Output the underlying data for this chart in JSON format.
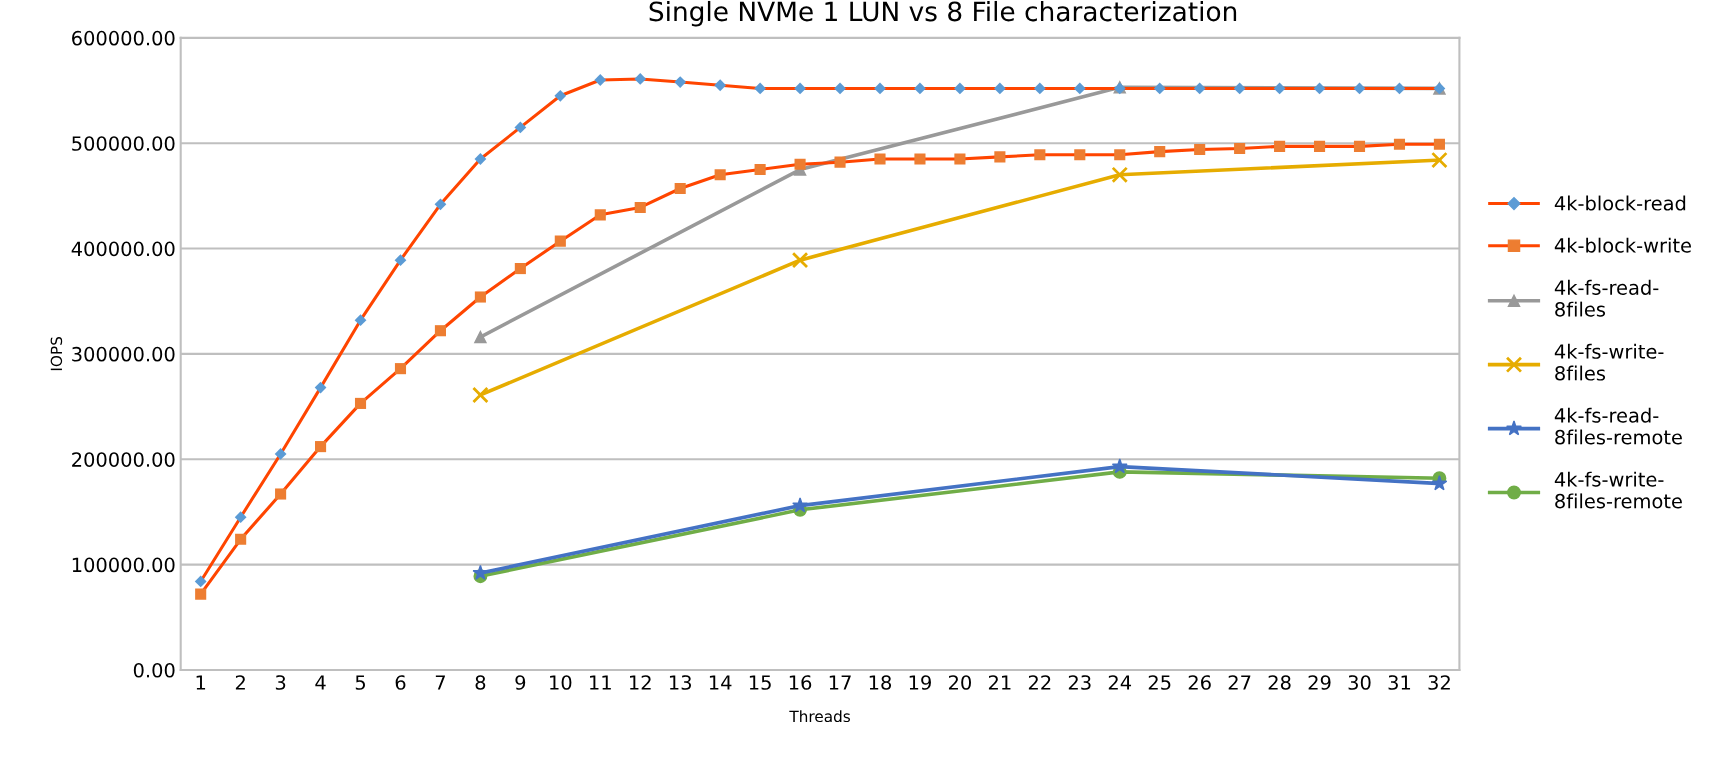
{
  "chart_data": {
    "type": "line",
    "title": "Single NVMe 1 LUN vs 8 File characterization",
    "xlabel": "Threads",
    "ylabel": "IOPS",
    "xlim": [
      0.5,
      32.5
    ],
    "xticks": [
      1,
      2,
      3,
      4,
      5,
      6,
      7,
      8,
      9,
      10,
      11,
      12,
      13,
      14,
      15,
      16,
      17,
      18,
      19,
      20,
      21,
      22,
      23,
      24,
      25,
      26,
      27,
      28,
      29,
      30,
      31,
      32
    ],
    "ylim": [
      0,
      600000
    ],
    "yticks": [
      {
        "value": 0,
        "label": "0.00"
      },
      {
        "value": 100000,
        "label": "100000.00"
      },
      {
        "value": 200000,
        "label": "200000.00"
      },
      {
        "value": 300000,
        "label": "300000.00"
      },
      {
        "value": 400000,
        "label": "400000.00"
      },
      {
        "value": 500000,
        "label": "500000.00"
      },
      {
        "value": 600000,
        "label": "600000.00"
      }
    ],
    "grid": "y",
    "legend": "right",
    "series": [
      {
        "name": "4k-block-read",
        "color": "#ff4500",
        "colors": [
          "#5b9bd5",
          "#5b9bd5",
          "#5b9bd5",
          "#5b9bd5",
          "#5b9bd5",
          "#5b9bd5",
          "#5b9bd5",
          "#5b9bd5",
          "#5b9bd5",
          "#5b9bd5",
          "#5b9bd5",
          "#5b9bd5",
          "#5b9bd5",
          "#5b9bd5",
          "#5b9bd5",
          "#5b9bd5",
          "#5b9bd5",
          "#5b9bd5",
          "#5b9bd5",
          "#5b9bd5",
          "#5b9bd5",
          "#5b9bd5",
          "#5b9bd5",
          "#5b9bd5",
          "#5b9bd5",
          "#5b9bd5",
          "#5b9bd5",
          "#5b9bd5",
          "#5b9bd5",
          "#5b9bd5",
          "#5b9bd5",
          "#5b9bd5"
        ],
        "marker": "diamond",
        "x": [
          1,
          2,
          3,
          4,
          5,
          6,
          7,
          8,
          9,
          10,
          11,
          12,
          13,
          14,
          15,
          16,
          17,
          18,
          19,
          20,
          21,
          22,
          23,
          24,
          25,
          26,
          27,
          28,
          29,
          30,
          31,
          32
        ],
        "values": [
          84000,
          145000,
          205000,
          268000,
          332000,
          389000,
          442000,
          485000,
          515000,
          545000,
          560000,
          561000,
          558000,
          555000,
          552000,
          552000,
          552000,
          552000,
          552000,
          552000,
          552000,
          552000,
          552000,
          552000,
          552000,
          552000,
          552000,
          552000,
          552000,
          552000,
          552000,
          552000
        ]
      },
      {
        "name": "4k-block-write",
        "color": "#ff4500",
        "colors": [
          "#ed7d31",
          "#ed7d31",
          "#ed7d31",
          "#ed7d31",
          "#ed7d31",
          "#ed7d31",
          "#ed7d31",
          "#ed7d31",
          "#ed7d31",
          "#ed7d31",
          "#ed7d31",
          "#ed7d31",
          "#ed7d31",
          "#ed7d31",
          "#ed7d31",
          "#ed7d31",
          "#ed7d31",
          "#ed7d31",
          "#ed7d31",
          "#ed7d31",
          "#ed7d31",
          "#ed7d31",
          "#ed7d31",
          "#ed7d31",
          "#ed7d31",
          "#ed7d31",
          "#ed7d31",
          "#ed7d31",
          "#ed7d31",
          "#ed7d31",
          "#ed7d31",
          "#ed7d31"
        ],
        "marker": "square",
        "x": [
          1,
          2,
          3,
          4,
          5,
          6,
          7,
          8,
          9,
          10,
          11,
          12,
          13,
          14,
          15,
          16,
          17,
          18,
          19,
          20,
          21,
          22,
          23,
          24,
          25,
          26,
          27,
          28,
          29,
          30,
          31,
          32
        ],
        "values": [
          72000,
          124000,
          167000,
          212000,
          253000,
          286000,
          322000,
          354000,
          381000,
          407000,
          432000,
          439000,
          457000,
          470000,
          475000,
          480000,
          482000,
          485000,
          485000,
          485000,
          487000,
          489000,
          489000,
          489000,
          492000,
          494000,
          495000,
          497000,
          497000,
          497000,
          499000,
          499000
        ]
      },
      {
        "name": "4k-fs-read-\n8files",
        "color": "#999999",
        "marker": "triangle",
        "x": [
          8,
          16,
          24,
          32
        ],
        "values": [
          316000,
          475000,
          553000,
          552000
        ]
      },
      {
        "name": "4k-fs-write-\n8files",
        "color": "#e6ac00",
        "marker": "cross",
        "x": [
          8,
          16,
          24,
          32
        ],
        "values": [
          261000,
          389000,
          470000,
          484000
        ]
      },
      {
        "name": "4k-fs-read-\n8files-remote",
        "color": "#4472c4",
        "marker": "star",
        "x": [
          8,
          16,
          24,
          32
        ],
        "values": [
          92000,
          156000,
          193000,
          177000
        ]
      },
      {
        "name": "4k-fs-write-\n8files-remote",
        "color": "#70ad47",
        "marker": "circle",
        "x": [
          8,
          16,
          24,
          32
        ],
        "values": [
          89000,
          152000,
          188000,
          182000
        ]
      }
    ]
  }
}
